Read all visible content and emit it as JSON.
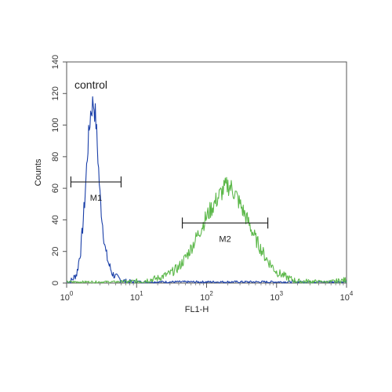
{
  "chart_data": {
    "type": "histogram",
    "xlabel": "FL1-H",
    "ylabel": "Counts",
    "x_scale": "log",
    "xlim": [
      1,
      10000
    ],
    "ylim": [
      0,
      140
    ],
    "x_ticks": [
      {
        "value": 1,
        "base": "10",
        "exp": "0"
      },
      {
        "value": 10,
        "base": "10",
        "exp": "1"
      },
      {
        "value": 100,
        "base": "10",
        "exp": "2"
      },
      {
        "value": 1000,
        "base": "10",
        "exp": "3"
      },
      {
        "value": 10000,
        "base": "10",
        "exp": "4"
      }
    ],
    "y_ticks": [
      "0",
      "20",
      "40",
      "60",
      "80",
      "100",
      "120",
      "140"
    ],
    "grid": false,
    "annotations": [
      {
        "text": "control"
      }
    ],
    "markers": [
      {
        "label": "M1",
        "x_start": 1.15,
        "x_end": 6.0,
        "y": 64
      },
      {
        "label": "M2",
        "x_start": 45,
        "x_end": 750,
        "y": 38
      }
    ],
    "series": [
      {
        "color": "#1a3fa8",
        "x": [
          1,
          1.2,
          1.4,
          1.6,
          1.8,
          2.0,
          2.2,
          2.4,
          2.6,
          2.8,
          3.0,
          3.3,
          3.6,
          4.0,
          4.5,
          5.0,
          6.0,
          7.0,
          9.0,
          12,
          20,
          100,
          1000,
          10000
        ],
        "values": [
          0,
          2,
          6,
          22,
          50,
          85,
          108,
          115,
          105,
          80,
          55,
          35,
          20,
          12,
          6,
          4,
          2,
          1,
          0.5,
          0,
          0,
          0,
          0,
          0
        ]
      },
      {
        "color": "#5cb84a",
        "x": [
          1,
          5,
          10,
          15,
          20,
          30,
          40,
          50,
          60,
          80,
          100,
          120,
          150,
          180,
          200,
          230,
          260,
          300,
          400,
          500,
          700,
          1000,
          1500,
          2000,
          3000,
          5000,
          10000
        ],
        "values": [
          0,
          0,
          1,
          2,
          3,
          6,
          10,
          16,
          22,
          33,
          42,
          48,
          55,
          60,
          62,
          60,
          56,
          50,
          38,
          28,
          16,
          7,
          3,
          1,
          1,
          0,
          2
        ]
      }
    ]
  }
}
